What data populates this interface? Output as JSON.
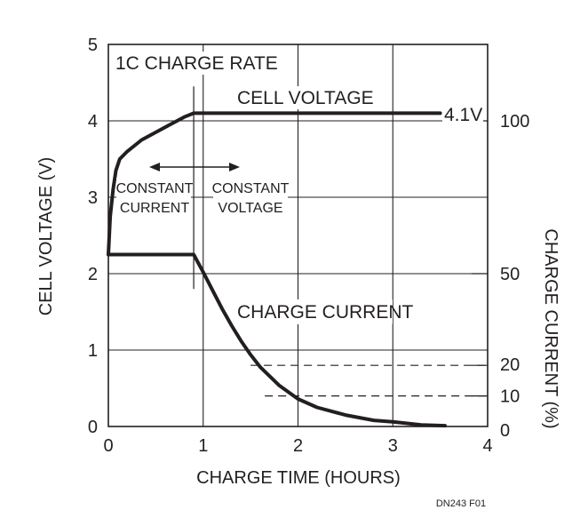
{
  "chart_data": {
    "type": "line",
    "x_axis": {
      "label": "CHARGE TIME (HOURS)",
      "range": [
        0,
        4
      ],
      "ticks": [
        0,
        1,
        2,
        3,
        4
      ],
      "tick_labels": [
        "0",
        "1",
        "2",
        "3",
        "4"
      ]
    },
    "y_axis_left": {
      "label": "CELL VOLTAGE (V)",
      "range": [
        0,
        5
      ],
      "ticks": [
        0,
        1,
        2,
        3,
        4,
        5
      ],
      "tick_labels": [
        "0",
        "1",
        "2",
        "3",
        "4",
        "5"
      ]
    },
    "y_axis_right": {
      "label": "CHARGE CURRENT (%)",
      "range": [
        0,
        125
      ],
      "ticks": [
        0,
        10,
        20,
        50,
        100
      ],
      "tick_labels": [
        "0",
        "10",
        "20",
        "50",
        "100"
      ]
    },
    "grid": true,
    "series": [
      {
        "name": "CELL VOLTAGE",
        "axis": "left",
        "x": [
          0.0,
          0.02,
          0.05,
          0.08,
          0.12,
          0.2,
          0.35,
          0.5,
          0.65,
          0.8,
          0.9,
          1.0,
          1.5,
          2.0,
          2.5,
          3.0,
          3.5
        ],
        "y": [
          2.25,
          2.75,
          3.1,
          3.35,
          3.5,
          3.6,
          3.75,
          3.85,
          3.95,
          4.05,
          4.1,
          4.1,
          4.1,
          4.1,
          4.1,
          4.1,
          4.1
        ]
      },
      {
        "name": "CHARGE CURRENT",
        "axis": "right",
        "x": [
          0.0,
          0.9,
          1.0,
          1.1,
          1.2,
          1.3,
          1.4,
          1.5,
          1.6,
          1.8,
          2.0,
          2.2,
          2.5,
          2.8,
          3.0,
          3.3,
          3.55
        ],
        "y": [
          56.25,
          56.25,
          50.5,
          44.5,
          38.5,
          33.0,
          28.0,
          23.5,
          19.5,
          13.5,
          9.0,
          6.25,
          3.75,
          2.0,
          1.5,
          0.5,
          0.25
        ]
      }
    ],
    "reference_lines": [
      {
        "axis": "right",
        "value": 20,
        "x_from": 1.5,
        "x_to": 4,
        "style": "dashed"
      },
      {
        "axis": "right",
        "value": 10,
        "x_from": 1.65,
        "x_to": 4,
        "style": "dashed"
      }
    ],
    "phase_divider_x": 0.9,
    "annotations": {
      "rate": "1C CHARGE RATE",
      "cell_voltage": "CELL VOLTAGE",
      "charge_current": "CHARGE CURRENT",
      "final_voltage": "4.1V",
      "phase1_line1": "CONSTANT",
      "phase1_line2": "CURRENT",
      "phase2_line1": "CONSTANT",
      "phase2_line2": "VOLTAGE"
    },
    "figure_id": "DN243 F01"
  },
  "colors": {
    "ink": "#231f20",
    "grid": "#231f20",
    "background": "#ffffff"
  }
}
